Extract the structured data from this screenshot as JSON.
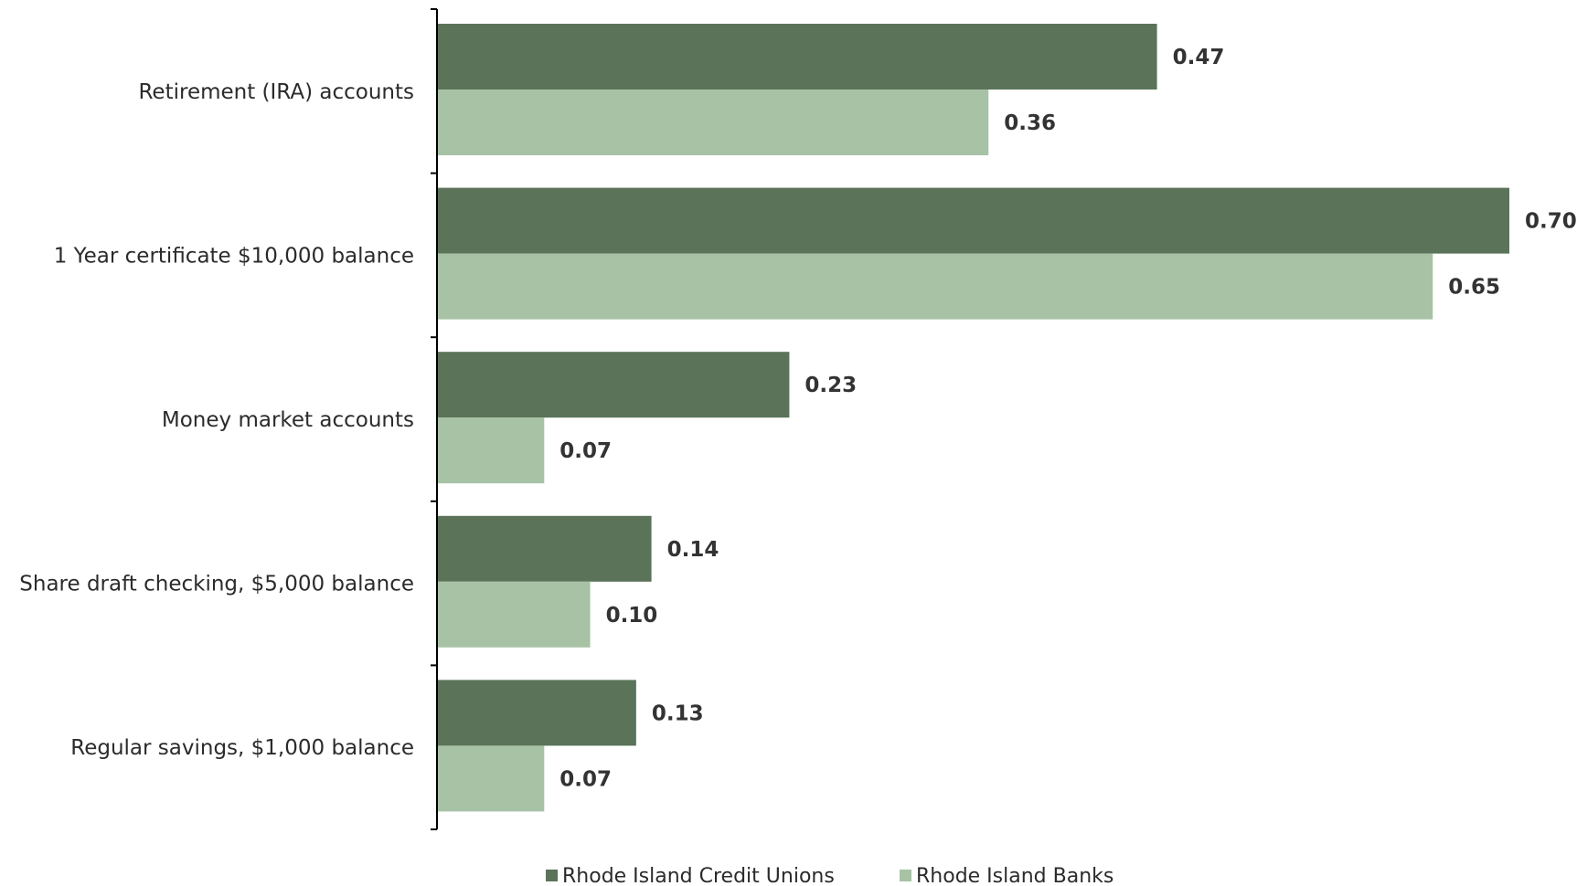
{
  "chart_data": {
    "type": "bar",
    "orientation": "horizontal",
    "categories": [
      "Retirement (IRA) accounts",
      "1 Year certificate $10,000 balance",
      "Money market accounts",
      "Share draft checking, $5,000 balance",
      "Regular savings, $1,000 balance"
    ],
    "series": [
      {
        "name": "Rhode Island Credit Unions",
        "color": "#5a7359",
        "values": [
          0.47,
          0.7,
          0.23,
          0.14,
          0.13
        ],
        "labels": [
          "0.47",
          "0.70",
          "0.23",
          "0.14",
          "0.13"
        ]
      },
      {
        "name": "Rhode Island Banks",
        "color": "#a8c2a6",
        "values": [
          0.36,
          0.65,
          0.07,
          0.1,
          0.07
        ],
        "labels": [
          "0.36",
          "0.65",
          "0.07",
          "0.10",
          "0.07"
        ]
      }
    ],
    "xlim": [
      0,
      0.7
    ],
    "grid": false,
    "legend_position": "bottom-center"
  }
}
